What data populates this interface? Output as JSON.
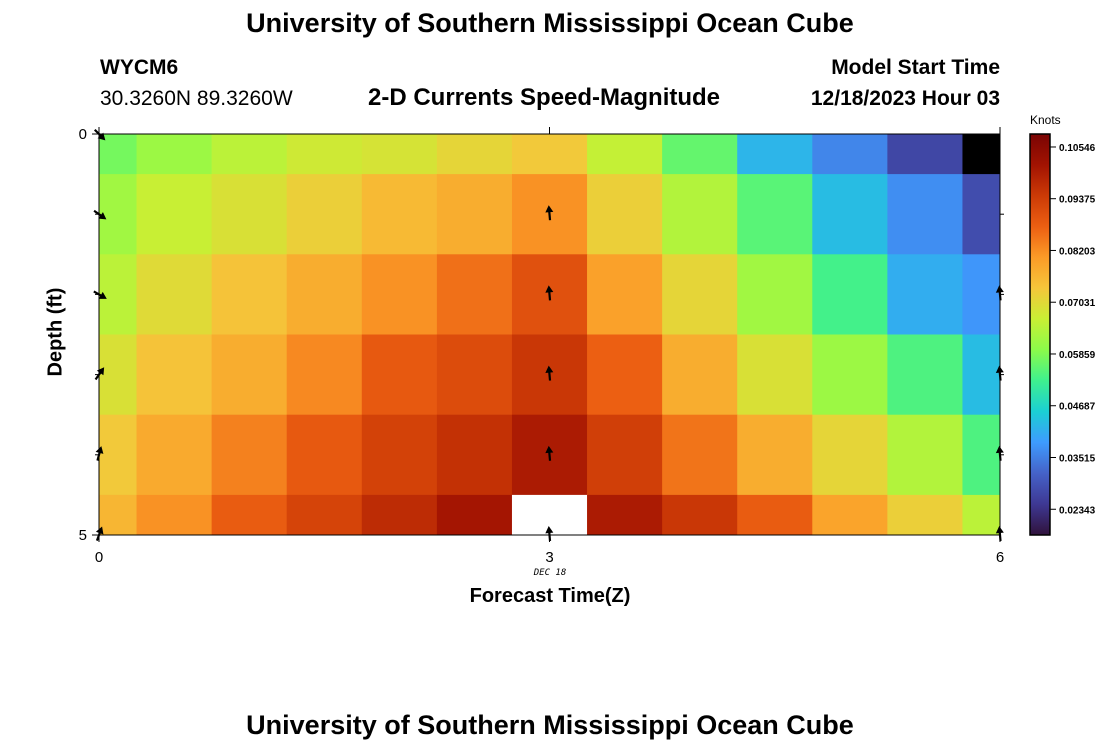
{
  "header": {
    "title": "University of Southern Mississippi Ocean Cube",
    "station_id": "WYCM6",
    "coordinates": "30.3260N  89.3260W",
    "subtitle": "2-D Currents Speed-Magnitude",
    "model_label": "Model Start Time",
    "model_time": "12/18/2023 Hour 03"
  },
  "footer": {
    "title": "University of Southern Mississippi Ocean Cube"
  },
  "colors": {
    "ramp": [
      "#30123b",
      "#3e3893",
      "#4562c8",
      "#3e9bfe",
      "#1bcfd4",
      "#3ef08f",
      "#8bfb4a",
      "#c8ef34",
      "#f5c63a",
      "#fb9b27",
      "#ec5f12",
      "#cc3a06",
      "#a21302",
      "#7a0403"
    ],
    "missing_high": "#ffffff",
    "missing_low": "#000000",
    "arrow": "#000000"
  },
  "chart_data": {
    "type": "heatmap",
    "title": "2-D Currents Speed-Magnitude",
    "xlabel": "Forecast Time(Z)",
    "ylabel": "Depth (ft)",
    "date_label": "DEC 18",
    "x_ticks": [
      "0",
      "3",
      "6"
    ],
    "y_ticks": [
      "0",
      "5"
    ],
    "xlim": [
      0,
      6
    ],
    "ylim": [
      0,
      5
    ],
    "x_edges": [
      0,
      0.25,
      0.75,
      1.25,
      1.75,
      2.25,
      2.75,
      3.25,
      3.75,
      4.25,
      4.75,
      5.25,
      5.75,
      6
    ],
    "y_edges": [
      0,
      0.5,
      1.5,
      2.5,
      3.5,
      4.5,
      5
    ],
    "colorbar": {
      "title": "Knots",
      "min": 0.0176,
      "max": 0.1084,
      "ticks": [
        "0.10546",
        "0.09375",
        "0.08203",
        "0.07031",
        "0.05859",
        "0.04687",
        "0.03515",
        "0.02343"
      ]
    },
    "values": [
      [
        0.0575,
        0.0615,
        0.065,
        0.0675,
        0.0685,
        0.071,
        0.073,
        0.066,
        0.056,
        0.042,
        0.036,
        0.027,
        null
      ],
      [
        0.062,
        0.0665,
        0.069,
        0.072,
        0.0755,
        0.0775,
        0.0815,
        0.072,
        0.064,
        0.055,
        0.043,
        0.037,
        0.028
      ],
      [
        0.065,
        0.07,
        0.074,
        0.0775,
        0.0815,
        0.0855,
        0.09,
        0.0795,
        0.071,
        0.062,
        0.053,
        0.041,
        0.038
      ],
      [
        0.069,
        0.074,
        0.0775,
        0.0825,
        0.0885,
        0.091,
        0.095,
        0.0875,
        0.0775,
        0.069,
        0.0615,
        0.054,
        0.043
      ],
      [
        0.073,
        0.078,
        0.0835,
        0.0885,
        0.093,
        0.096,
        0.1,
        0.0935,
        0.085,
        0.0775,
        0.071,
        0.064,
        0.054
      ],
      [
        0.076,
        0.0815,
        0.088,
        0.0925,
        0.097,
        0.101,
        "high",
        0.1,
        0.095,
        0.088,
        0.079,
        0.072,
        0.065
      ]
    ],
    "vectors": [
      {
        "x": 0,
        "y": 0,
        "angle": 135
      },
      {
        "x": 0,
        "y": 1,
        "angle": 125
      },
      {
        "x": 0,
        "y": 2,
        "angle": 120
      },
      {
        "x": 0,
        "y": 3,
        "angle": 35
      },
      {
        "x": 0,
        "y": 4,
        "angle": 15
      },
      {
        "x": 0,
        "y": 5,
        "angle": 20
      },
      {
        "x": 3,
        "y": 1,
        "angle": -5
      },
      {
        "x": 3,
        "y": 2,
        "angle": -5
      },
      {
        "x": 3,
        "y": 3,
        "angle": -5
      },
      {
        "x": 3,
        "y": 4,
        "angle": -5
      },
      {
        "x": 3,
        "y": 5,
        "angle": -5
      },
      {
        "x": 6,
        "y": 2,
        "angle": -5
      },
      {
        "x": 6,
        "y": 3,
        "angle": -5
      },
      {
        "x": 6,
        "y": 4,
        "angle": -5
      },
      {
        "x": 6,
        "y": 5,
        "angle": -5
      }
    ]
  }
}
